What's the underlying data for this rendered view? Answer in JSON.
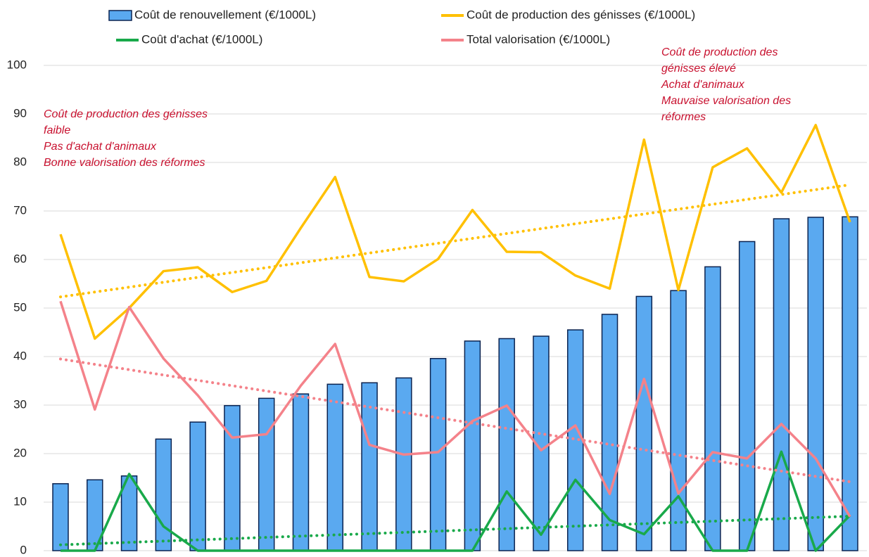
{
  "chart_data": {
    "type": "bar-line",
    "categories": [
      null,
      null,
      null,
      null,
      null,
      null,
      null,
      null,
      null,
      null,
      null,
      null,
      null,
      null,
      null,
      null,
      null,
      null,
      null,
      null,
      null,
      null,
      null,
      null
    ],
    "ylim": [
      0,
      100
    ],
    "yticks": [
      0,
      10,
      20,
      30,
      40,
      50,
      60,
      70,
      80,
      90,
      100
    ],
    "grid": true,
    "series": [
      {
        "name": "Coût de renouvellement (€/1000L)",
        "type": "bar",
        "color": "#5aa9f0",
        "values": [
          13.8,
          14.6,
          15.4,
          23.0,
          26.5,
          29.9,
          31.4,
          32.3,
          34.3,
          34.6,
          35.6,
          39.6,
          43.2,
          43.7,
          44.2,
          45.5,
          48.7,
          52.4,
          53.6,
          58.5,
          63.7,
          68.4,
          68.7,
          68.8
        ]
      },
      {
        "name": "Coût de production des génisses (€/1000L)",
        "type": "line",
        "color": "#ffc000",
        "values": [
          65.2,
          43.7,
          50.0,
          57.6,
          58.4,
          53.3,
          55.6,
          66.5,
          77.0,
          56.4,
          55.5,
          60.1,
          70.2,
          61.6,
          61.5,
          56.7,
          54.0,
          84.7,
          53.7,
          79.0,
          82.9,
          73.8,
          87.7,
          67.7
        ],
        "trend": [
          52.3,
          75.4
        ]
      },
      {
        "name": "Coût d'achat (€/1000L)",
        "type": "line",
        "color": "#19a94a",
        "values": [
          0,
          0,
          15.8,
          5.0,
          0,
          0,
          0,
          0,
          0,
          0,
          0,
          0,
          0,
          12.2,
          3.3,
          14.6,
          6.3,
          3.4,
          11.2,
          0,
          0,
          20.4,
          0,
          7.3
        ],
        "trend": [
          1.2,
          7.1
        ]
      },
      {
        "name": "Total valorisation (€/1000L)",
        "type": "line",
        "color": "#f4828a",
        "values": [
          51.4,
          29.1,
          50.2,
          39.6,
          32.0,
          23.3,
          24.0,
          34.0,
          42.6,
          21.8,
          19.8,
          20.3,
          26.7,
          29.9,
          20.7,
          25.8,
          11.7,
          35.4,
          11.8,
          20.3,
          19.0,
          26.1,
          19.0,
          7.0
        ],
        "trend": [
          39.5,
          14.2
        ]
      }
    ],
    "annotations": [
      [
        "Coût de production des génisses",
        "faible",
        "Pas d'achat d'animaux",
        "Bonne valorisation des réformes"
      ],
      [
        "Coût de production des",
        "génisses élevé",
        "Achat d'animaux",
        "Mauvaise valorisation des",
        "réformes"
      ]
    ]
  }
}
